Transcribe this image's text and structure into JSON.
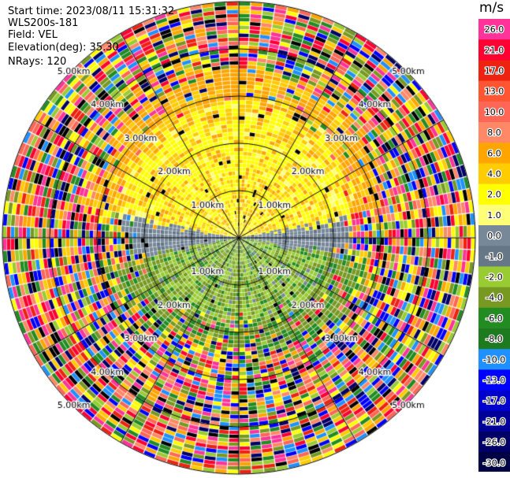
{
  "header": {
    "start_time": "Start time: 2023/08/11 15:31:32",
    "station": "WLS200s-181",
    "field": "Field: VEL",
    "elevation": "Elevation(deg): 35.30",
    "nrays": "NRays: 120"
  },
  "colorbar": {
    "unit": "m/s",
    "levels": [
      {
        "label": "26.0",
        "color": "#ff3399"
      },
      {
        "label": "21.0",
        "color": "#ff0033"
      },
      {
        "label": "17.0",
        "color": "#ee2211"
      },
      {
        "label": "13.0",
        "color": "#ff5533"
      },
      {
        "label": "10.0",
        "color": "#ff6655"
      },
      {
        "label": "8.0",
        "color": "#ff8866"
      },
      {
        "label": "6.0",
        "color": "#ffa500"
      },
      {
        "label": "4.0",
        "color": "#ffcc00"
      },
      {
        "label": "2.0",
        "color": "#ffff00"
      },
      {
        "label": "1.0",
        "color": "#ffff77"
      },
      {
        "label": "0.0",
        "color": "#778899"
      },
      {
        "label": "-1.0",
        "color": "#667788"
      },
      {
        "label": "-2.0",
        "color": "#99cc33"
      },
      {
        "label": "-4.0",
        "color": "#779922"
      },
      {
        "label": "-6.0",
        "color": "#228b22"
      },
      {
        "label": "-8.0",
        "color": "#1e7a1e"
      },
      {
        "label": "-10.0",
        "color": "#1e90ff"
      },
      {
        "label": "-13.0",
        "color": "#0000ff"
      },
      {
        "label": "-17.0",
        "color": "#0000cc"
      },
      {
        "label": "-21.0",
        "color": "#000099"
      },
      {
        "label": "-26.0",
        "color": "#000066"
      },
      {
        "label": "-30.0",
        "color": "#000044"
      }
    ]
  },
  "chart_data": {
    "type": "heatmap",
    "projection": "polar-ppi",
    "field": "VEL",
    "units": "m/s",
    "n_rays": 120,
    "elevation_deg": 35.3,
    "range_rings_km": [
      1.0,
      2.0,
      3.0,
      4.0,
      5.0
    ],
    "ring_labels": [
      "1.00km",
      "2.00km",
      "3.00km",
      "4.00km",
      "5.00km"
    ],
    "spokes_deg": [
      0,
      30,
      60,
      90,
      120,
      150,
      180,
      210,
      240,
      270,
      300,
      330
    ],
    "max_range_km": 5.0,
    "pattern": {
      "near_range_km": 2.3,
      "north_sector": "positive velocities 2 to 6 m/s",
      "south_sector": "negative velocities -2 to -6 m/s",
      "zero_band": "east-west 0 m/s band",
      "far_range": "noisy random values"
    }
  }
}
